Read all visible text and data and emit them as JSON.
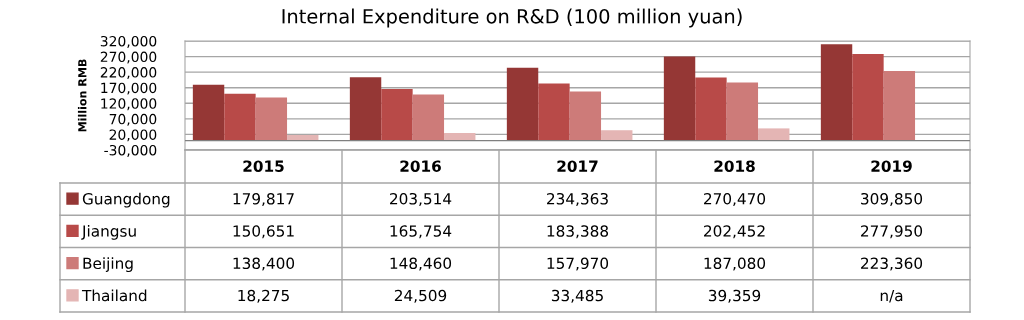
{
  "chart_data": {
    "type": "bar",
    "title": "Internal Expenditure on R&D (100 million yuan)",
    "ylabel": "Million RMB",
    "categories": [
      "2015",
      "2016",
      "2017",
      "2018",
      "2019"
    ],
    "series": [
      {
        "name": "Guangdong",
        "color": "#953735",
        "values": [
          179817,
          203514,
          234363,
          270470,
          309850
        ],
        "value_labels": [
          "179,817",
          "203,514",
          "234,363",
          "270,470",
          "309,850"
        ]
      },
      {
        "name": "Jiangsu",
        "color": "#b84a48",
        "values": [
          150651,
          165754,
          183388,
          202452,
          277950
        ],
        "value_labels": [
          "150,651",
          "165,754",
          "183,388",
          "202,452",
          "277,950"
        ]
      },
      {
        "name": "Beijing",
        "color": "#cd7b79",
        "values": [
          138400,
          148460,
          157970,
          187080,
          223360
        ],
        "value_labels": [
          "138,400",
          "148,460",
          "157,970",
          "187,080",
          "223,360"
        ]
      },
      {
        "name": "Thailand",
        "color": "#e4b5b4",
        "values": [
          18275,
          24509,
          33485,
          39359,
          null
        ],
        "value_labels": [
          "18,275",
          "24,509",
          "33,485",
          "39,359",
          "n/a"
        ]
      }
    ],
    "ylim": [
      -30000,
      320000
    ],
    "yticks": [
      {
        "value": -30000,
        "label": "-30,000"
      },
      {
        "value": 20000,
        "label": "20,000"
      },
      {
        "value": 70000,
        "label": "70,000"
      },
      {
        "value": 120000,
        "label": "120,000"
      },
      {
        "value": 170000,
        "label": "170,000"
      },
      {
        "value": 220000,
        "label": "220,000"
      },
      {
        "value": 270000,
        "label": "270,000"
      },
      {
        "value": 320000,
        "label": "320,000"
      }
    ],
    "grid": "y",
    "legend": "bottom left"
  }
}
